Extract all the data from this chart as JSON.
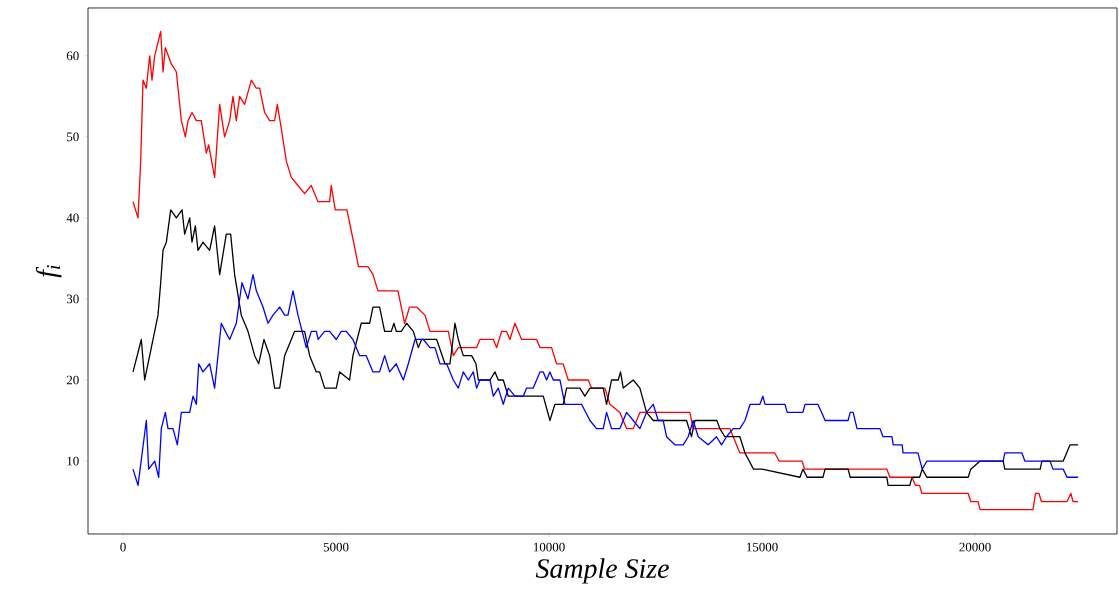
{
  "chart_data": {
    "type": "line",
    "xlabel": "Sample Size",
    "ylabel": "f$_{i}$",
    "xlim": [
      -822,
      23333
    ],
    "ylim": [
      1,
      65.9
    ],
    "xticks": [
      0,
      5000,
      10000,
      15000,
      20000
    ],
    "yticks": [
      10,
      20,
      30,
      40,
      50,
      60
    ],
    "grid": false,
    "marker": "none",
    "line_style": "solid",
    "series": [
      {
        "color": "#ff0000",
        "x": [
          235,
          352,
          415,
          469,
          547,
          626,
          680,
          743,
          884,
          939,
          993,
          1134,
          1252,
          1369,
          1463,
          1526,
          1619,
          1721,
          1838,
          1955,
          2010,
          2150,
          2268,
          2385,
          2503,
          2581,
          2659,
          2737,
          2855,
          3012,
          3129,
          3207,
          3325,
          3442,
          3559,
          3622,
          3716,
          3833,
          3950,
          4107,
          4263,
          4419,
          4576,
          4850,
          4888,
          4982,
          5255,
          5334,
          5412,
          5528,
          5750,
          5867,
          5984,
          6454,
          6532,
          6610,
          6727,
          6893,
          7088,
          7206,
          7636,
          7753,
          7870,
          8300,
          8378,
          8692,
          8770,
          8887,
          9000,
          9082,
          9200,
          9356,
          9709,
          9787,
          10060,
          10177,
          10330,
          10451,
          10920,
          10999,
          11311,
          11429,
          11663,
          11820,
          11977,
          12133,
          13306,
          13384,
          14244,
          14480,
          15300,
          15400,
          15940,
          16000,
          17930,
          18000,
          18520,
          18600,
          18700,
          18750,
          19840,
          19900,
          20070,
          20120,
          21360,
          21420,
          21500,
          21560,
          22160,
          22250,
          22300,
          22420
        ],
        "values": [
          42,
          40,
          47,
          57,
          56,
          60,
          57,
          60,
          63,
          58,
          61,
          59,
          58,
          52,
          50,
          52,
          53,
          52,
          52,
          48,
          49,
          45,
          54,
          50,
          52,
          55,
          52,
          55,
          54,
          57,
          56,
          56,
          53,
          52,
          52,
          54,
          51,
          47,
          45,
          44,
          43,
          44,
          42,
          42,
          44,
          41,
          41,
          39,
          37,
          34,
          34,
          33,
          31,
          31,
          29,
          27,
          29,
          29,
          28,
          26,
          26,
          23,
          24,
          24,
          25,
          25,
          24,
          26,
          26,
          25,
          27,
          25,
          25,
          24,
          24,
          22,
          22,
          20,
          20,
          19,
          19,
          17,
          16,
          14,
          14,
          16,
          16,
          14,
          14,
          11,
          11,
          10,
          10,
          9,
          9,
          8,
          8,
          7,
          7,
          6,
          6,
          5,
          5,
          4,
          4,
          6,
          6,
          5,
          5,
          6,
          5,
          5
        ]
      },
      {
        "color": "#000000",
        "x": [
          235,
          430,
          508,
          626,
          821,
          884,
          939,
          1017,
          1119,
          1252,
          1385,
          1447,
          1565,
          1619,
          1698,
          1760,
          1877,
          2033,
          2150,
          2268,
          2424,
          2526,
          2620,
          2776,
          2933,
          3090,
          3184,
          3309,
          3442,
          3559,
          3677,
          3794,
          3950,
          4028,
          4263,
          4380,
          4537,
          4615,
          4732,
          5006,
          5084,
          5319,
          5397,
          5593,
          5789,
          5867,
          6023,
          6141,
          6297,
          6359,
          6415,
          6532,
          6658,
          6814,
          6932,
          7010,
          7362,
          7557,
          7675,
          7792,
          7870,
          7987,
          8183,
          8285,
          8340,
          8614,
          8731,
          8809,
          8926,
          9043,
          9630,
          9709,
          9865,
          10021,
          10138,
          10334,
          10412,
          10725,
          10842,
          10960,
          11273,
          11351,
          11468,
          11624,
          11679,
          11742,
          11977,
          12133,
          12289,
          12446,
          13228,
          13345,
          13424,
          13940,
          14010,
          14127,
          14480,
          14600,
          14800,
          15000,
          15890,
          15960,
          16060,
          16430,
          16480,
          17020,
          17070,
          17930,
          17960,
          18470,
          18520,
          18700,
          18760,
          18870,
          19840,
          19900,
          20120,
          20660,
          20700,
          21530,
          21570,
          22070,
          22150,
          22230,
          22420
        ],
        "values": [
          21,
          25,
          20,
          23,
          28,
          32,
          36,
          37,
          41,
          40,
          41,
          38,
          40,
          37,
          39,
          36,
          37,
          36,
          39,
          33,
          38,
          38,
          33,
          28,
          26,
          23,
          22,
          25,
          23,
          19,
          19,
          23,
          25,
          26,
          26,
          23,
          21,
          21,
          19,
          19,
          21,
          20,
          23,
          27,
          27,
          29,
          29,
          26,
          26,
          27,
          26,
          26,
          27,
          26,
          24,
          25,
          25,
          22,
          22,
          27,
          25,
          23,
          23,
          22,
          20,
          20,
          21,
          20,
          20,
          18,
          18,
          18,
          18,
          15,
          17,
          17,
          19,
          19,
          18,
          19,
          19,
          17,
          20,
          20,
          21,
          19,
          20,
          19,
          16,
          15,
          15,
          13,
          15,
          15,
          14,
          13,
          13,
          11,
          9,
          9,
          8,
          9,
          8,
          8,
          9,
          9,
          8,
          8,
          7,
          7,
          8,
          8,
          9,
          8,
          8,
          9,
          10,
          10,
          9,
          9,
          10,
          10,
          11,
          12,
          12
        ]
      },
      {
        "color": "#0000ff",
        "x": [
          235,
          352,
          547,
          602,
          743,
          837,
          899,
          993,
          1056,
          1173,
          1275,
          1369,
          1565,
          1643,
          1721,
          1776,
          1877,
          2033,
          2150,
          2307,
          2401,
          2503,
          2659,
          2792,
          2933,
          3051,
          3129,
          3286,
          3403,
          3520,
          3677,
          3794,
          3872,
          3990,
          4107,
          4302,
          4419,
          4537,
          4580,
          4732,
          4850,
          5006,
          5123,
          5241,
          5397,
          5554,
          5710,
          5867,
          6023,
          6141,
          6258,
          6415,
          6493,
          6580,
          6697,
          6854,
          7049,
          7206,
          7323,
          7440,
          7596,
          7753,
          7870,
          7987,
          8105,
          8222,
          8300,
          8378,
          8614,
          8692,
          8809,
          8926,
          9043,
          9200,
          9395,
          9474,
          9630,
          9787,
          9865,
          9943,
          10021,
          10099,
          10256,
          10373,
          10764,
          10960,
          11116,
          11273,
          11351,
          11468,
          11663,
          11820,
          11977,
          12133,
          12289,
          12446,
          12563,
          12680,
          12759,
          12954,
          13150,
          13267,
          13384,
          13502,
          13736,
          13932,
          14049,
          14166,
          14322,
          14480,
          14600,
          14720,
          14950,
          15020,
          15070,
          15540,
          15590,
          15960,
          16010,
          16310,
          16400,
          16480,
          17020,
          17070,
          17140,
          17230,
          17770,
          17840,
          18050,
          18080,
          18290,
          18310,
          18660,
          18760,
          18870,
          20660,
          20700,
          21100,
          21170,
          21760,
          21830,
          22070,
          22160,
          22420
        ],
        "values": [
          9,
          7,
          15,
          9,
          10,
          8,
          14,
          16,
          14,
          14,
          12,
          16,
          16,
          18,
          17,
          22,
          21,
          22,
          19,
          27,
          26,
          25,
          27,
          32,
          30,
          33,
          31,
          29,
          27,
          28,
          29,
          28,
          28,
          31,
          28,
          24,
          26,
          26,
          25,
          26,
          26,
          25,
          26,
          26,
          25,
          23,
          23,
          21,
          21,
          23,
          21,
          22,
          21,
          20,
          22,
          25,
          25,
          24,
          24,
          22,
          22,
          20,
          19,
          21,
          20,
          21,
          19,
          20,
          20,
          18,
          19,
          17,
          19,
          18,
          18,
          19,
          19,
          21,
          21,
          20,
          21,
          20,
          20,
          17,
          17,
          15,
          14,
          14,
          16,
          14,
          14,
          16,
          15,
          14,
          16,
          17,
          15,
          15,
          13,
          12,
          12,
          13,
          15,
          13,
          12,
          13,
          12,
          13,
          14,
          14,
          15,
          17,
          17,
          18,
          17,
          17,
          16,
          16,
          17,
          17,
          16,
          15,
          15,
          16,
          16,
          14,
          14,
          13,
          13,
          12,
          12,
          11,
          11,
          9,
          10,
          10,
          11,
          11,
          10,
          10,
          9,
          9,
          8,
          8
        ]
      }
    ]
  }
}
